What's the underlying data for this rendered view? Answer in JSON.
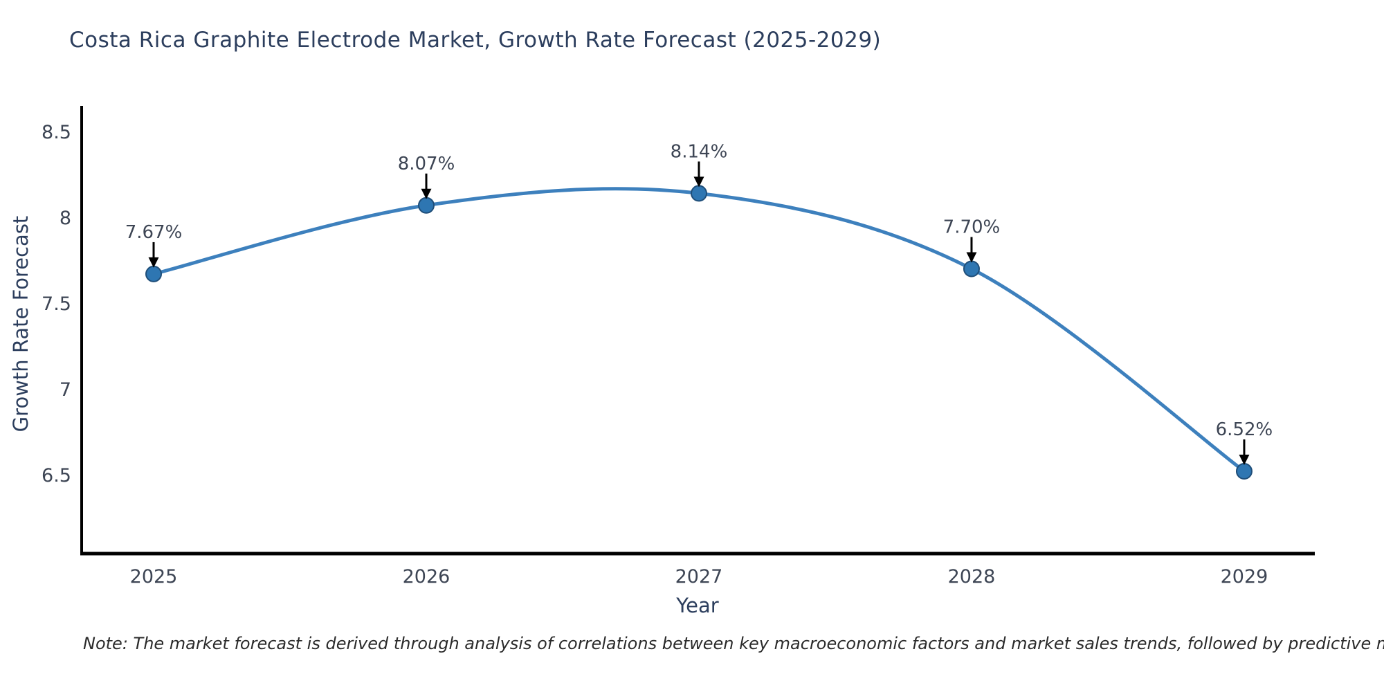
{
  "title": "Costa Rica Graphite Electrode Market, Growth Rate Forecast (2025-2029)",
  "note": "Note: The market forecast is derived through analysis of correlations between key macroeconomic factors and market sales trends, followed by predictive modeling to project future sales",
  "chart_data": {
    "type": "line",
    "title": "Costa Rica Graphite Electrode Market, Growth Rate Forecast (2025-2029)",
    "x": [
      2025,
      2026,
      2027,
      2028,
      2029
    ],
    "xtick_labels": [
      "2025",
      "2026",
      "2027",
      "2028",
      "2029"
    ],
    "series": [
      {
        "name": "Growth Rate Forecast",
        "values": [
          7.67,
          8.07,
          8.14,
          7.7,
          6.52
        ]
      }
    ],
    "annotations": [
      "7.67%",
      "8.07%",
      "8.14%",
      "7.70%",
      "6.52%"
    ],
    "xlabel": "Year",
    "ylabel": "Growth Rate Forecast",
    "yticks": [
      6.5,
      7,
      7.5,
      8,
      8.5
    ],
    "ytick_labels": [
      "6.5",
      "7",
      "7.5",
      "8",
      "8.5"
    ],
    "ylim": [
      6.04,
      8.65
    ],
    "xlim": [
      2024.736,
      2029.259
    ],
    "grid": false,
    "line_shape": "spline",
    "legend": "none",
    "colors": {
      "line": "#3d80bd",
      "marker_fill": "#2e76b2",
      "marker_edge": "#1f4e79",
      "axis": "#000000",
      "arrow": "#000000",
      "title_text": "#2c3e5d",
      "tick_text": "#3d4554",
      "annotation_text": "#3d4554",
      "note_text": "#2b2b2b"
    }
  }
}
